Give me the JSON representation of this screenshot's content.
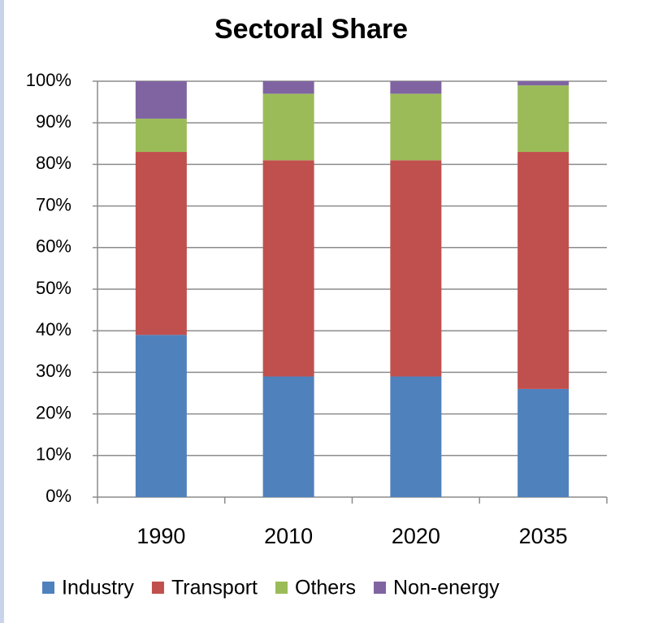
{
  "chart_data": {
    "type": "stacked_bar",
    "title": "Sectoral Share",
    "categories": [
      "1990",
      "2010",
      "2020",
      "2035"
    ],
    "series": [
      {
        "name": "Industry",
        "color": "#4f81bd",
        "values": [
          39,
          29,
          29,
          26
        ]
      },
      {
        "name": "Transport",
        "color": "#c0504d",
        "values": [
          44,
          52,
          52,
          57
        ]
      },
      {
        "name": "Others",
        "color": "#9bbb59",
        "values": [
          8,
          16,
          16,
          16
        ]
      },
      {
        "name": "Non-energy",
        "color": "#8064a2",
        "values": [
          9,
          3,
          3,
          1
        ]
      }
    ],
    "ylim": [
      0,
      100
    ],
    "yticks": [
      {
        "value": 0,
        "label": "0%"
      },
      {
        "value": 10,
        "label": "10%"
      },
      {
        "value": 20,
        "label": "20%"
      },
      {
        "value": 30,
        "label": "30%"
      },
      {
        "value": 40,
        "label": "40%"
      },
      {
        "value": 50,
        "label": "50%"
      },
      {
        "value": 60,
        "label": "60%"
      },
      {
        "value": 70,
        "label": "70%"
      },
      {
        "value": 80,
        "label": "80%"
      },
      {
        "value": 90,
        "label": "90%"
      },
      {
        "value": 100,
        "label": "100%"
      }
    ],
    "grid": true,
    "legend": "bottom"
  }
}
